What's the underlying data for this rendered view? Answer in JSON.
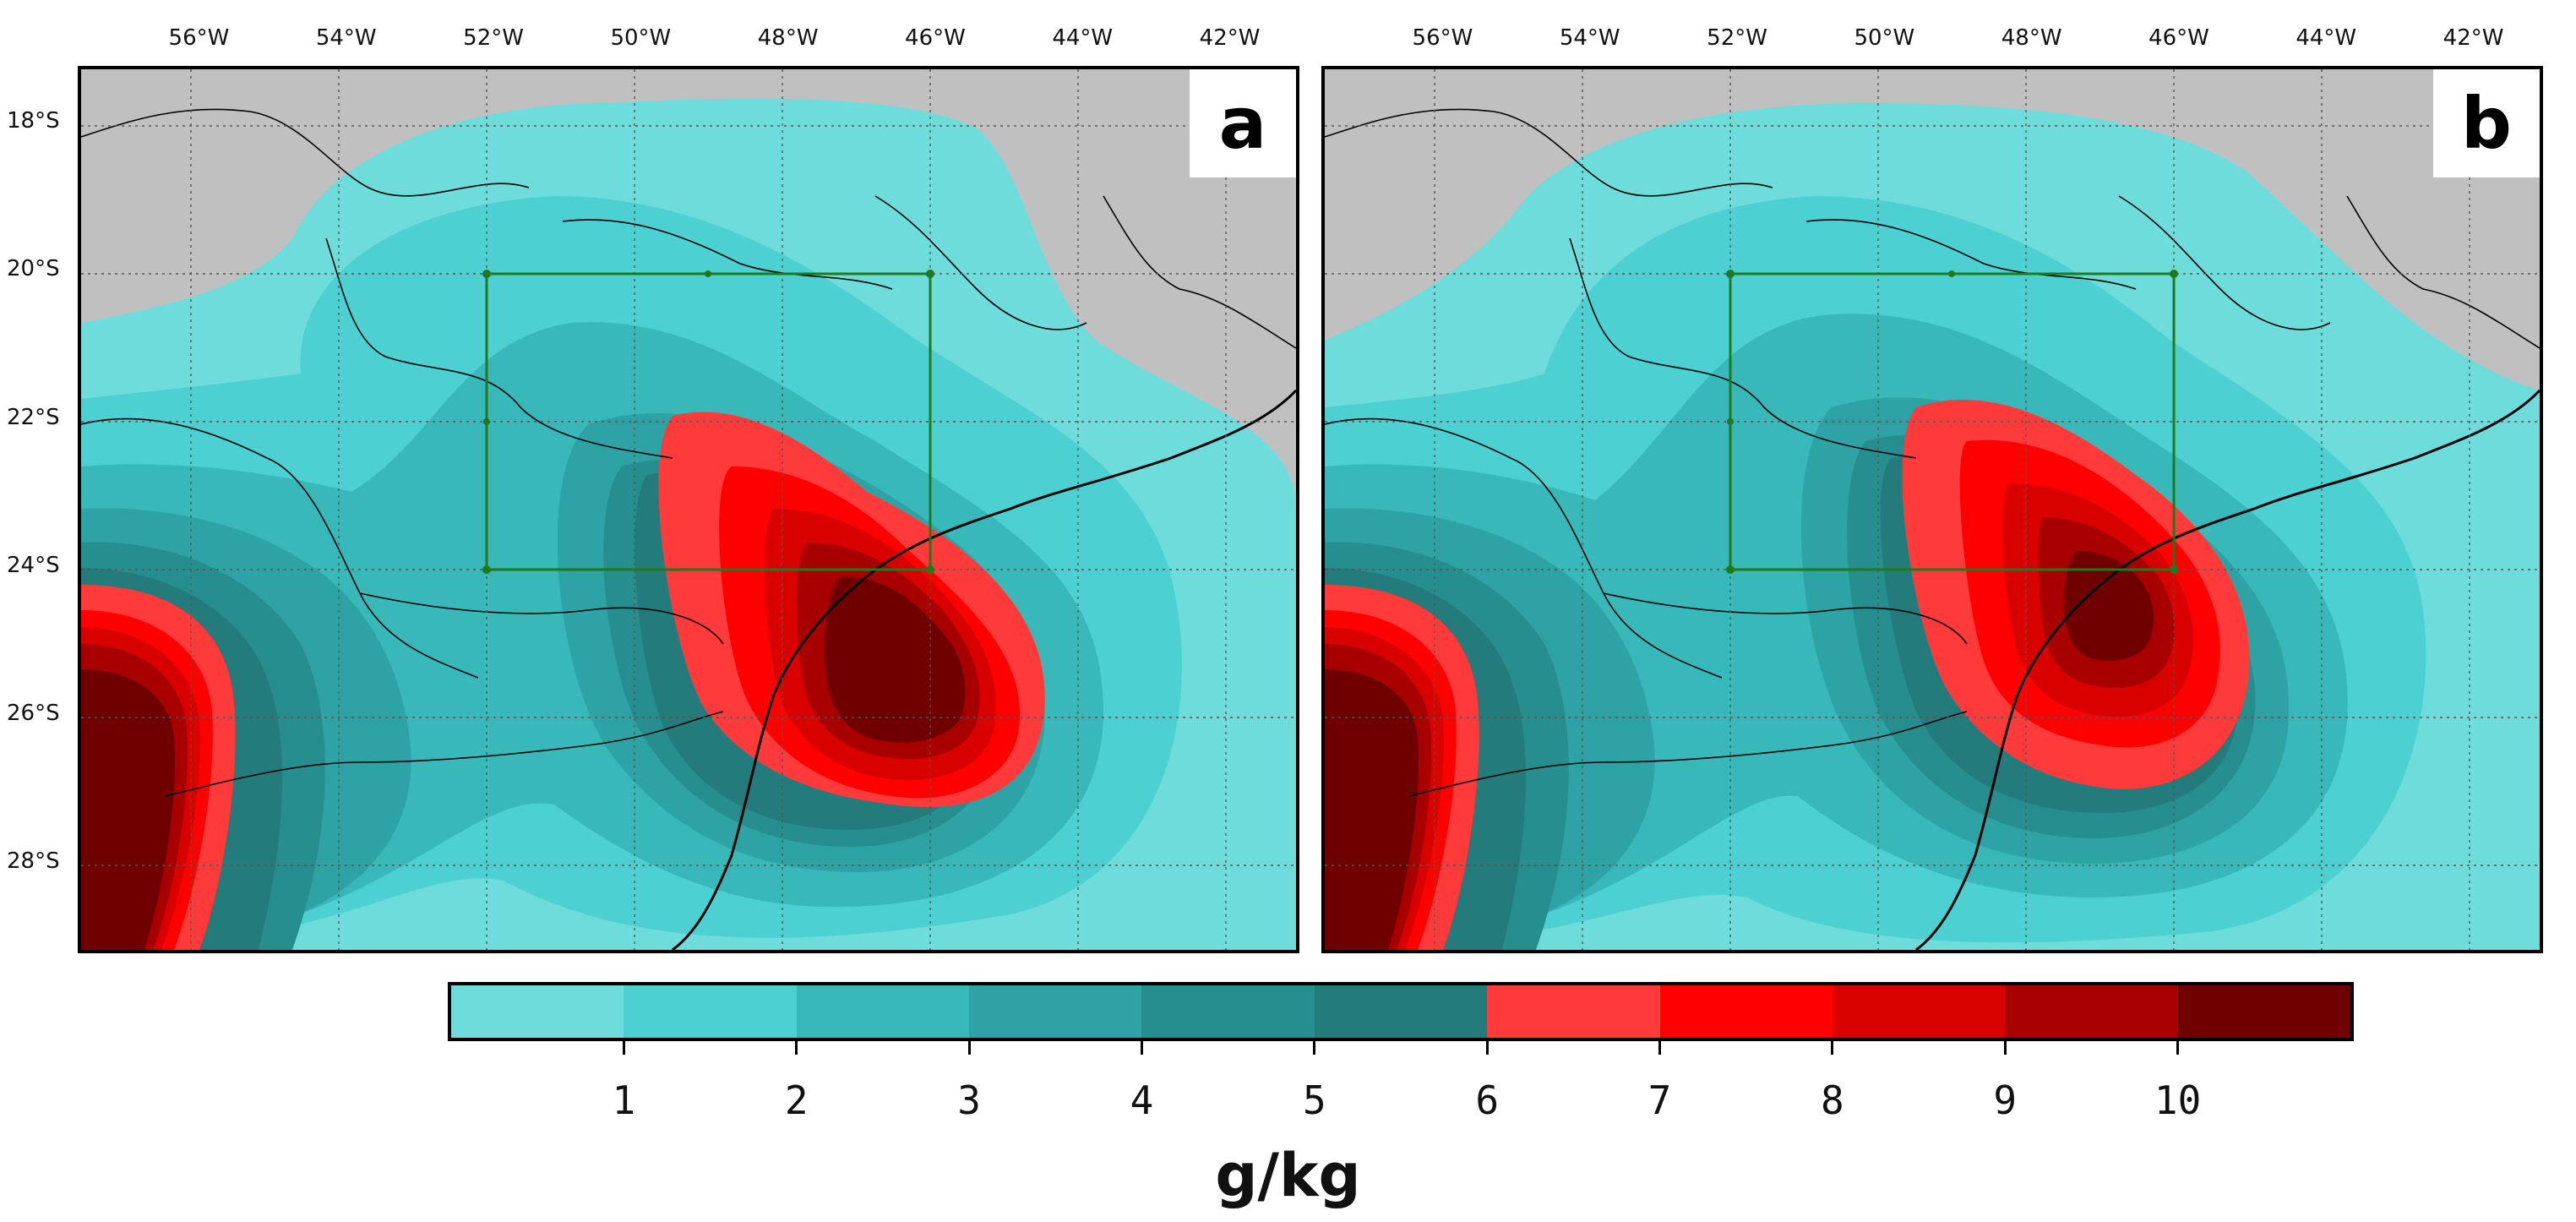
{
  "axes": {
    "lon_labels": [
      "56°W",
      "54°W",
      "52°W",
      "50°W",
      "48°W",
      "46°W",
      "44°W",
      "42°W"
    ],
    "lon_values": [
      -56,
      -54,
      -52,
      -50,
      -48,
      -46,
      -44,
      -42
    ],
    "lat_labels": [
      "18°S",
      "20°S",
      "22°S",
      "24°S",
      "26°S",
      "28°S"
    ],
    "lat_values": [
      -18,
      -20,
      -22,
      -24,
      -26,
      -28
    ],
    "lon_range": [
      -57.6,
      -41.1
    ],
    "lat_range": [
      -29.2,
      -17.3
    ],
    "gridlines": true
  },
  "panels": [
    {
      "label": "a",
      "box": {
        "lon_min": -52,
        "lon_max": -46,
        "lat_min": -24,
        "lat_max": -20
      }
    },
    {
      "label": "b",
      "box": {
        "lon_min": -52,
        "lon_max": -46,
        "lat_min": -24,
        "lat_max": -20
      }
    }
  ],
  "colorbar": {
    "colors": [
      "#6fdcdc",
      "#4dd0d1",
      "#38b8b8",
      "#2ea3a5",
      "#278e8f",
      "#237b7c",
      "#ff3a3a",
      "#ff0000",
      "#d90000",
      "#a80000",
      "#700000"
    ],
    "tick_labels": [
      "1",
      "2",
      "3",
      "4",
      "5",
      "6",
      "7",
      "8",
      "9",
      "10"
    ],
    "unit": "g/kg"
  },
  "colors": {
    "land_outside": "#c0c0c0",
    "box_line": "#1f7a1f"
  }
}
